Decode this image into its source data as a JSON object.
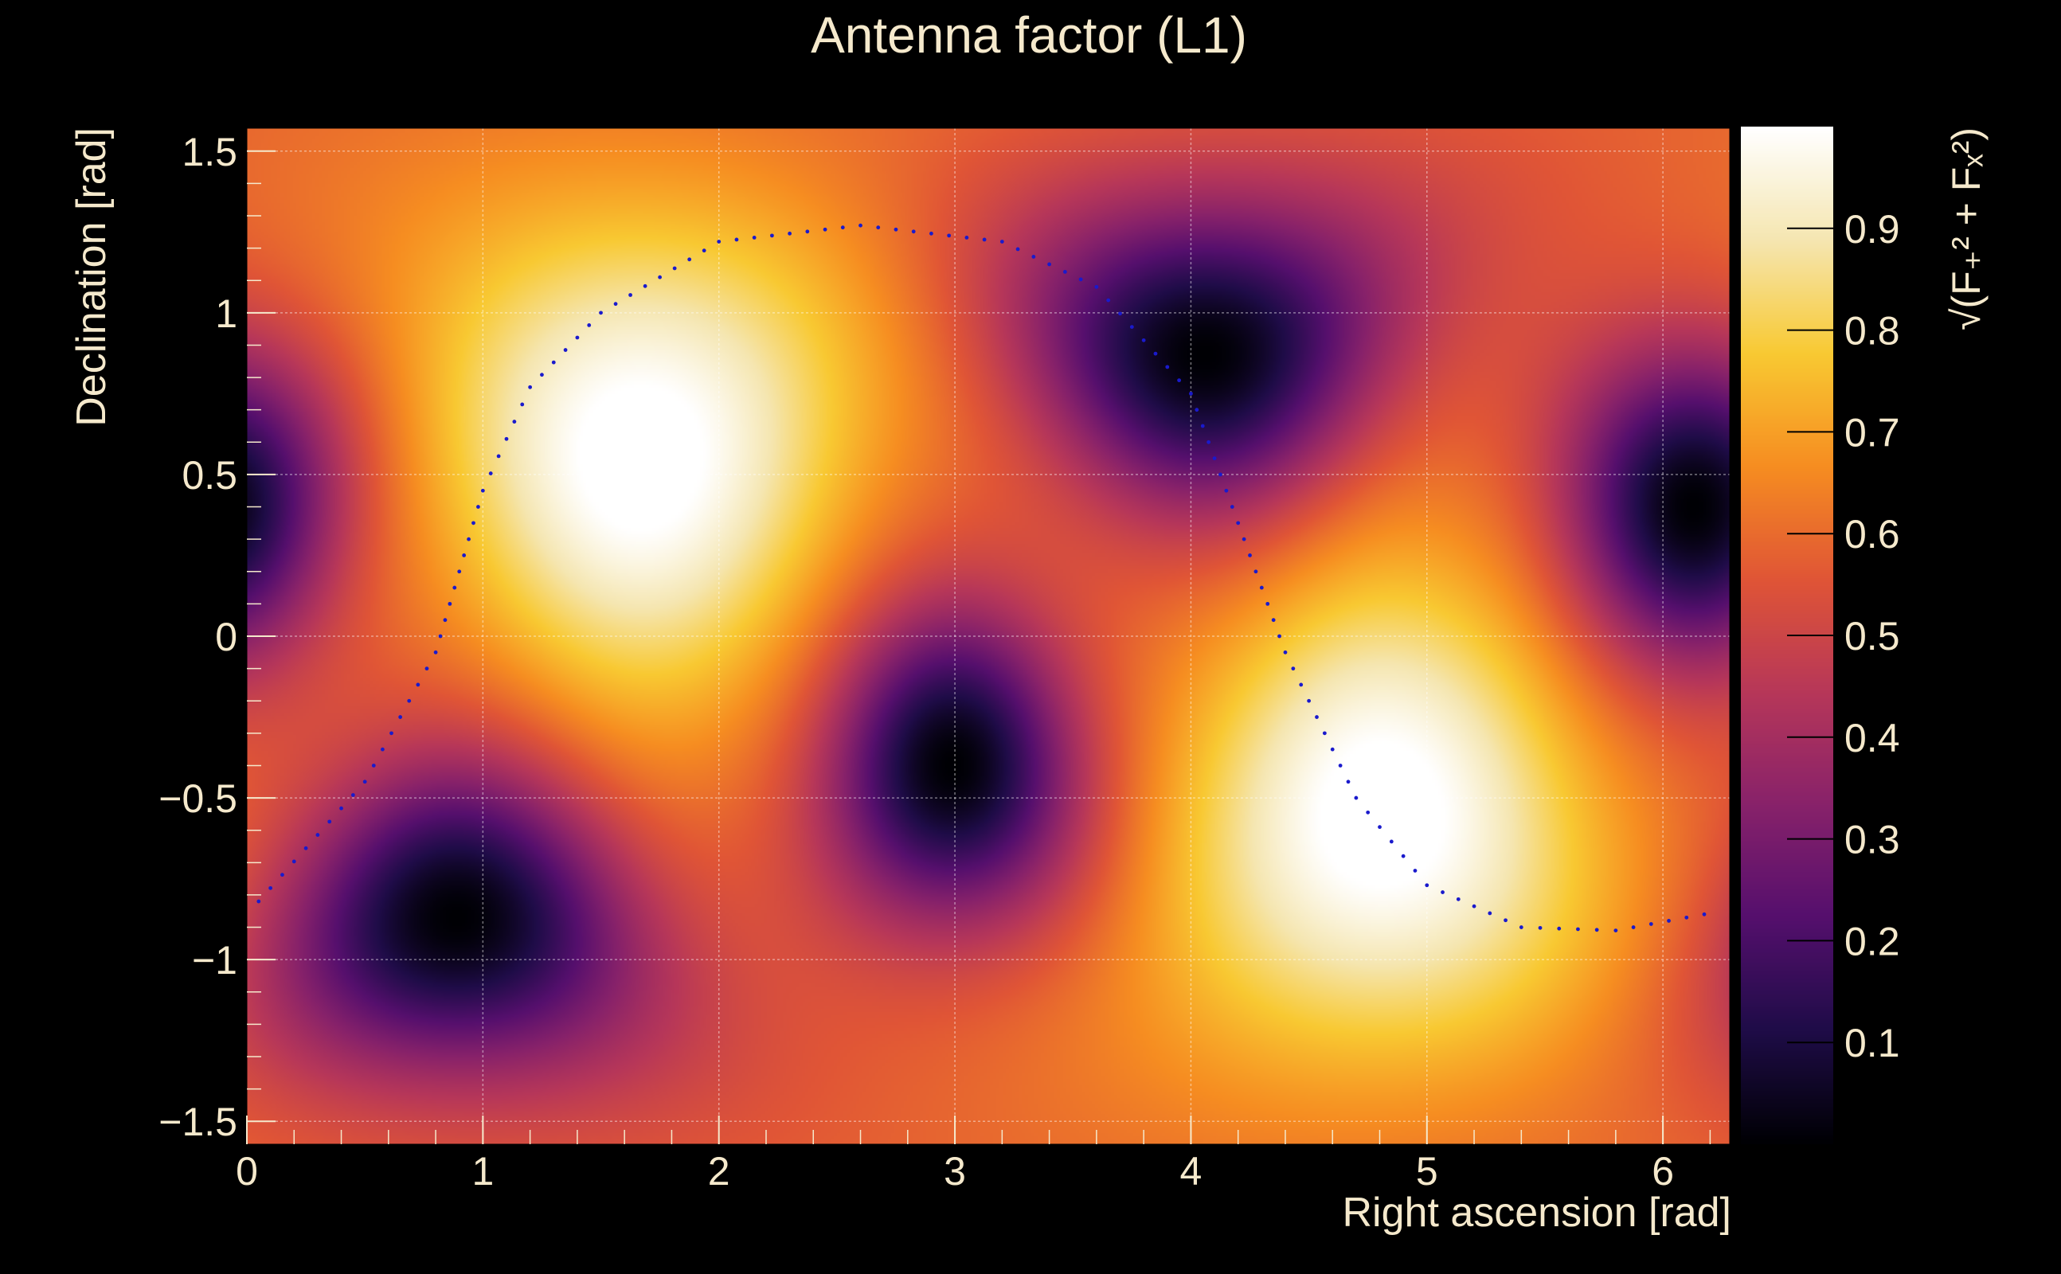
{
  "chart_data": {
    "type": "heatmap",
    "title": "Antenna factor (L1)",
    "xlabel": "Right ascension [rad]",
    "ylabel": "Declination [rad]",
    "xlim": [
      0,
      6.283
    ],
    "ylim": [
      -1.5708,
      1.5708
    ],
    "x_ticks": [
      0,
      1,
      2,
      3,
      4,
      5,
      6
    ],
    "y_ticks": [
      -1.5,
      -1,
      -0.5,
      0,
      0.5,
      1,
      1.5
    ],
    "x_tick_labels": [
      "0",
      "1",
      "2",
      "3",
      "4",
      "5",
      "6"
    ],
    "y_tick_labels": [
      "−1.5",
      "−1",
      "−0.5",
      "0",
      "0.5",
      "1",
      "1.5"
    ],
    "grid": true,
    "colorbar": {
      "label": "√(F₊² + Fₓ²)",
      "range": [
        0,
        1
      ],
      "ticks": [
        0.1,
        0.2,
        0.3,
        0.4,
        0.5,
        0.6,
        0.7,
        0.8,
        0.9
      ],
      "tick_labels": [
        "0.1",
        "0.2",
        "0.3",
        "0.4",
        "0.5",
        "0.6",
        "0.7",
        "0.8",
        "0.9"
      ],
      "palette": [
        "#000004",
        "#1f0c48",
        "#550f6d",
        "#88226a",
        "#b73759",
        "#e05536",
        "#f68d21",
        "#f8c932",
        "#f5e6b0",
        "#ffffff"
      ]
    },
    "maxima": [
      {
        "ra": 1.67,
        "dec": 0.55,
        "value": 1.0
      },
      {
        "ra": 4.81,
        "dec": -0.55,
        "value": 1.0
      }
    ],
    "minima": [
      {
        "ra": 4.06,
        "dec": 0.87,
        "value": 0.0
      },
      {
        "ra": 0.89,
        "dec": -0.87,
        "value": 0.0
      },
      {
        "ra": 2.99,
        "dec": -0.4,
        "value": 0.0
      },
      {
        "ra": 6.13,
        "dec": 0.4,
        "value": 0.0
      }
    ],
    "series": [
      {
        "type": "dotted-curve",
        "color": "#1a1acc",
        "points": [
          {
            "x": 0.05,
            "y": -0.82
          },
          {
            "x": 0.5,
            "y": -0.45
          },
          {
            "x": 0.8,
            "y": -0.05
          },
          {
            "x": 1.0,
            "y": 0.45
          },
          {
            "x": 1.2,
            "y": 0.77
          },
          {
            "x": 1.5,
            "y": 1.0
          },
          {
            "x": 2.0,
            "y": 1.22
          },
          {
            "x": 2.6,
            "y": 1.27
          },
          {
            "x": 3.2,
            "y": 1.22
          },
          {
            "x": 3.6,
            "y": 1.08
          },
          {
            "x": 4.0,
            "y": 0.75
          },
          {
            "x": 4.2,
            "y": 0.35
          },
          {
            "x": 4.4,
            "y": -0.05
          },
          {
            "x": 4.7,
            "y": -0.5
          },
          {
            "x": 5.0,
            "y": -0.77
          },
          {
            "x": 5.4,
            "y": -0.9
          },
          {
            "x": 5.8,
            "y": -0.91
          },
          {
            "x": 6.25,
            "y": -0.85
          }
        ]
      }
    ]
  }
}
